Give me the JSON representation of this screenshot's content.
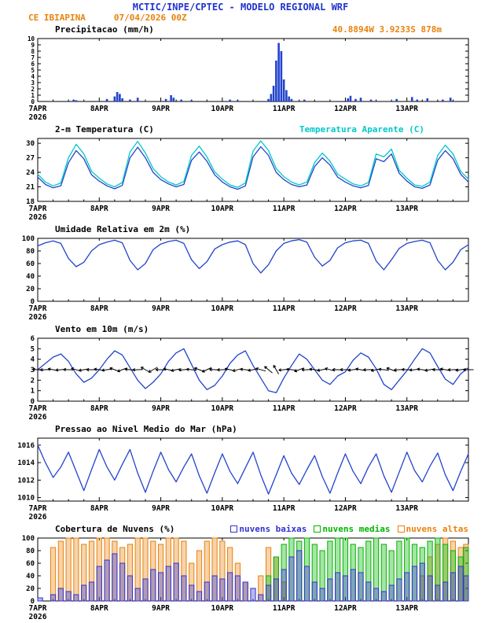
{
  "colors": {
    "header_blue": "#2233cc",
    "orange": "#e8820c",
    "line_blue": "#2244cc",
    "cyan": "#00c8c8",
    "green": "#00b400",
    "cloud_blue": "#3333cc",
    "black": "#000000"
  },
  "header": {
    "title": "MCTIC/INPE/CPTEC - MODELO REGIONAL WRF",
    "station": "CE IBIAPINA",
    "run": "07/04/2026 00Z",
    "coords": "40.8894W 3.9233S 878m"
  },
  "x_axis": {
    "ticks": [
      "7APR",
      "8APR",
      "9APR",
      "10APR",
      "11APR",
      "12APR",
      "13APR"
    ],
    "year": "2026",
    "hours_total": 168,
    "day_tick_hours": [
      0,
      24,
      48,
      72,
      96,
      120,
      144
    ],
    "step_hours": 3
  },
  "chart_data": [
    {
      "type": "bar",
      "title": "Precipitacao (mm/h)",
      "ylim": [
        0,
        10
      ],
      "yticks": [
        0,
        1,
        2,
        3,
        4,
        5,
        6,
        7,
        8,
        9,
        10
      ],
      "tick_font": 7.5,
      "color": "#2244cc",
      "points": [
        [
          14,
          0.3
        ],
        [
          15,
          0.2
        ],
        [
          27,
          0.4
        ],
        [
          30,
          0.8
        ],
        [
          31,
          1.5
        ],
        [
          32,
          1.2
        ],
        [
          33,
          0.5
        ],
        [
          36,
          0.3
        ],
        [
          39,
          0.6
        ],
        [
          50,
          0.4
        ],
        [
          52,
          1.0
        ],
        [
          53,
          0.6
        ],
        [
          56,
          0.3
        ],
        [
          60,
          0.2
        ],
        [
          75,
          0.3
        ],
        [
          78,
          0.2
        ],
        [
          90,
          0.4
        ],
        [
          91,
          1.2
        ],
        [
          92,
          2.5
        ],
        [
          93,
          6.5
        ],
        [
          94,
          9.3
        ],
        [
          95,
          8.0
        ],
        [
          96,
          3.5
        ],
        [
          97,
          1.8
        ],
        [
          98,
          0.8
        ],
        [
          99,
          0.4
        ],
        [
          104,
          0.3
        ],
        [
          121,
          0.5
        ],
        [
          122,
          0.9
        ],
        [
          124,
          0.4
        ],
        [
          126,
          0.6
        ],
        [
          130,
          0.3
        ],
        [
          140,
          0.4
        ],
        [
          146,
          0.7
        ],
        [
          148,
          0.3
        ],
        [
          152,
          0.5
        ],
        [
          158,
          0.3
        ],
        [
          161,
          0.6
        ]
      ]
    },
    {
      "type": "line",
      "title": "2-m Temperatura (C)",
      "ylim": [
        18,
        31
      ],
      "yticks": [
        18,
        21,
        24,
        27,
        30
      ],
      "series": [
        {
          "name": "2-m Temperatura (C)",
          "color": "#2244cc",
          "values": [
            23.0,
            21.5,
            20.8,
            21.2,
            26.0,
            28.5,
            26.8,
            23.5,
            22.2,
            21.2,
            20.6,
            21.3,
            27.0,
            29.2,
            27.0,
            24.0,
            22.5,
            21.6,
            21.0,
            21.5,
            26.5,
            28.2,
            26.3,
            23.5,
            22.0,
            21.0,
            20.5,
            21.2,
            27.2,
            29.3,
            27.5,
            24.0,
            22.5,
            21.5,
            21.0,
            21.4,
            25.2,
            27.0,
            25.5,
            23.0,
            22.0,
            21.2,
            20.8,
            21.3,
            26.8,
            26.2,
            27.8,
            23.8,
            22.2,
            21.0,
            20.7,
            21.4,
            26.5,
            28.5,
            26.8,
            23.6,
            22.0
          ]
        },
        {
          "name": "Temperatura Aparente (C)",
          "color": "#00c8c8",
          "values": [
            23.6,
            22.0,
            21.2,
            21.8,
            27.0,
            29.8,
            27.8,
            24.2,
            22.8,
            21.6,
            21.0,
            21.9,
            28.2,
            30.4,
            28.0,
            24.8,
            23.1,
            22.0,
            21.4,
            22.1,
            27.5,
            29.4,
            27.2,
            24.1,
            22.6,
            21.4,
            20.9,
            21.8,
            28.4,
            30.5,
            28.5,
            24.8,
            23.1,
            22.0,
            21.4,
            22.0,
            26.0,
            28.0,
            26.3,
            23.6,
            22.6,
            21.6,
            21.2,
            21.9,
            27.8,
            27.2,
            28.8,
            24.4,
            22.8,
            21.4,
            21.1,
            22.0,
            27.5,
            29.6,
            27.8,
            24.2,
            22.6
          ]
        }
      ]
    },
    {
      "type": "line",
      "title": "Umidade Relativa em 2m (%)",
      "ylim": [
        0,
        100
      ],
      "yticks": [
        0,
        20,
        40,
        60,
        80,
        100
      ],
      "series": [
        {
          "name": "Umidade Relativa em 2m (%)",
          "color": "#2244cc",
          "values": [
            88,
            93,
            96,
            92,
            68,
            55,
            62,
            80,
            90,
            94,
            97,
            93,
            65,
            50,
            60,
            82,
            91,
            95,
            97,
            92,
            66,
            52,
            63,
            83,
            90,
            94,
            96,
            90,
            60,
            45,
            58,
            80,
            92,
            96,
            98,
            94,
            70,
            56,
            65,
            85,
            93,
            96,
            97,
            92,
            64,
            50,
            66,
            84,
            92,
            95,
            97,
            93,
            65,
            50,
            62,
            82,
            90
          ]
        }
      ]
    },
    {
      "type": "wind",
      "title": "Vento em 10m (m/s)",
      "ylim": [
        0,
        6
      ],
      "yticks": [
        0,
        1,
        2,
        3,
        4,
        5,
        6
      ],
      "barb_level": 3,
      "barb_color": "#000000",
      "series": [
        {
          "name": "Vento em 10m (m/s)",
          "color": "#2244cc",
          "values": [
            3.0,
            3.6,
            4.2,
            4.5,
            3.8,
            2.6,
            1.8,
            2.2,
            3.0,
            4.0,
            4.8,
            4.4,
            3.2,
            2.0,
            1.2,
            1.8,
            2.6,
            3.8,
            4.6,
            5.0,
            3.5,
            2.0,
            1.1,
            1.5,
            2.4,
            3.6,
            4.4,
            4.8,
            3.4,
            2.2,
            1.0,
            0.8,
            2.2,
            3.4,
            4.5,
            4.0,
            3.0,
            2.0,
            1.6,
            2.4,
            2.8,
            3.9,
            4.6,
            4.2,
            3.1,
            1.6,
            1.1,
            2.0,
            2.9,
            4.0,
            5.0,
            4.6,
            3.3,
            2.1,
            1.6,
            2.6,
            3.2
          ]
        }
      ],
      "barb_angles_deg": [
        185,
        178,
        190,
        175,
        182,
        195,
        170,
        180,
        188,
        172,
        200,
        160,
        185,
        178,
        210,
        150,
        180,
        190,
        168,
        175,
        185,
        200,
        155,
        182,
        178,
        192,
        165,
        185,
        170,
        195,
        220,
        240,
        175,
        185,
        160,
        178,
        188,
        170,
        195,
        182,
        180,
        172,
        190,
        178,
        168,
        185,
        200,
        176,
        182,
        175,
        188,
        170,
        180,
        190,
        178,
        172,
        180
      ]
    },
    {
      "type": "line",
      "title": "Pressao ao Nivel Medio do Mar (hPa)",
      "ylim": [
        1009.6,
        1016.8
      ],
      "yticks": [
        1010,
        1012,
        1014,
        1016
      ],
      "series": [
        {
          "name": "Pressao ao Nivel Medio do Mar (hPa)",
          "color": "#2244cc",
          "values": [
            1016.0,
            1014.0,
            1012.3,
            1013.5,
            1015.2,
            1013.0,
            1010.8,
            1013.2,
            1015.5,
            1013.5,
            1012.0,
            1013.8,
            1015.5,
            1012.8,
            1010.6,
            1013.0,
            1015.2,
            1013.2,
            1011.8,
            1013.5,
            1015.0,
            1012.5,
            1010.5,
            1012.8,
            1015.0,
            1013.0,
            1011.6,
            1013.4,
            1015.2,
            1012.6,
            1010.4,
            1012.6,
            1014.8,
            1012.8,
            1011.5,
            1013.2,
            1014.8,
            1012.4,
            1010.5,
            1012.8,
            1015.0,
            1013.0,
            1011.6,
            1013.5,
            1015.0,
            1012.5,
            1010.6,
            1012.9,
            1015.2,
            1013.1,
            1011.8,
            1013.6,
            1015.1,
            1012.6,
            1010.8,
            1013.0,
            1015.0
          ]
        }
      ]
    },
    {
      "type": "cloudbar",
      "title": "Cobertura de Nuvens (%)",
      "ylim": [
        0,
        100
      ],
      "yticks": [
        0,
        20,
        40,
        60,
        80,
        100
      ],
      "series": [
        {
          "name": "nuvens altas",
          "color": "#e8820c",
          "values": [
            0,
            0,
            85,
            95,
            100,
            100,
            90,
            95,
            100,
            100,
            95,
            85,
            90,
            100,
            100,
            95,
            90,
            100,
            100,
            95,
            60,
            80,
            95,
            100,
            95,
            85,
            60,
            30,
            0,
            40,
            85,
            70,
            30,
            0,
            0,
            0,
            0,
            0,
            0,
            0,
            0,
            0,
            0,
            0,
            0,
            0,
            0,
            0,
            0,
            0,
            40,
            70,
            90,
            100,
            95,
            85,
            90
          ]
        },
        {
          "name": "nuvens medias",
          "color": "#00b400",
          "values": [
            0,
            0,
            0,
            0,
            0,
            0,
            0,
            0,
            0,
            0,
            0,
            0,
            0,
            0,
            0,
            0,
            0,
            0,
            0,
            0,
            0,
            0,
            0,
            0,
            0,
            0,
            0,
            0,
            0,
            0,
            40,
            70,
            90,
            100,
            95,
            100,
            90,
            80,
            95,
            100,
            100,
            90,
            85,
            95,
            100,
            90,
            80,
            95,
            100,
            90,
            85,
            95,
            100,
            90,
            80,
            70,
            85
          ]
        },
        {
          "name": "nuvens baixas",
          "color": "#3333cc",
          "values": [
            5,
            0,
            10,
            20,
            15,
            10,
            25,
            30,
            55,
            65,
            75,
            60,
            40,
            20,
            35,
            50,
            45,
            55,
            60,
            40,
            25,
            15,
            30,
            40,
            35,
            45,
            40,
            30,
            20,
            10,
            25,
            35,
            50,
            70,
            80,
            55,
            30,
            20,
            35,
            45,
            40,
            50,
            45,
            30,
            20,
            15,
            25,
            35,
            45,
            55,
            60,
            40,
            25,
            30,
            45,
            55,
            40
          ]
        }
      ]
    }
  ]
}
